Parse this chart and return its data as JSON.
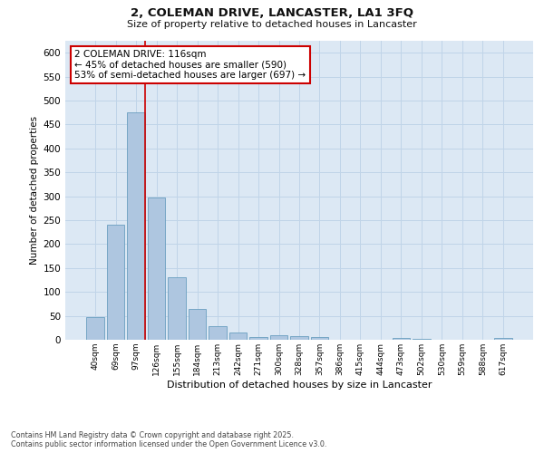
{
  "title_line1": "2, COLEMAN DRIVE, LANCASTER, LA1 3FQ",
  "title_line2": "Size of property relative to detached houses in Lancaster",
  "xlabel": "Distribution of detached houses by size in Lancaster",
  "ylabel": "Number of detached properties",
  "categories": [
    "40sqm",
    "69sqm",
    "97sqm",
    "126sqm",
    "155sqm",
    "184sqm",
    "213sqm",
    "242sqm",
    "271sqm",
    "300sqm",
    "328sqm",
    "357sqm",
    "386sqm",
    "415sqm",
    "444sqm",
    "473sqm",
    "502sqm",
    "530sqm",
    "559sqm",
    "588sqm",
    "617sqm"
  ],
  "values": [
    48,
    240,
    475,
    298,
    130,
    64,
    28,
    15,
    5,
    9,
    8,
    6,
    0,
    0,
    0,
    4,
    2,
    0,
    0,
    0,
    3
  ],
  "bar_color": "#aec6e0",
  "bar_edge_color": "#6a9ec0",
  "annotation_text": "2 COLEMAN DRIVE: 116sqm\n← 45% of detached houses are smaller (590)\n53% of semi-detached houses are larger (697) →",
  "annotation_box_facecolor": "#ffffff",
  "annotation_box_edgecolor": "#cc0000",
  "highlight_line_color": "#cc0000",
  "grid_color": "#c0d4e8",
  "background_color": "#dce8f4",
  "ylim": [
    0,
    625
  ],
  "yticks": [
    0,
    50,
    100,
    150,
    200,
    250,
    300,
    350,
    400,
    450,
    500,
    550,
    600
  ],
  "footnote_line1": "Contains HM Land Registry data © Crown copyright and database right 2025.",
  "footnote_line2": "Contains public sector information licensed under the Open Government Licence v3.0."
}
